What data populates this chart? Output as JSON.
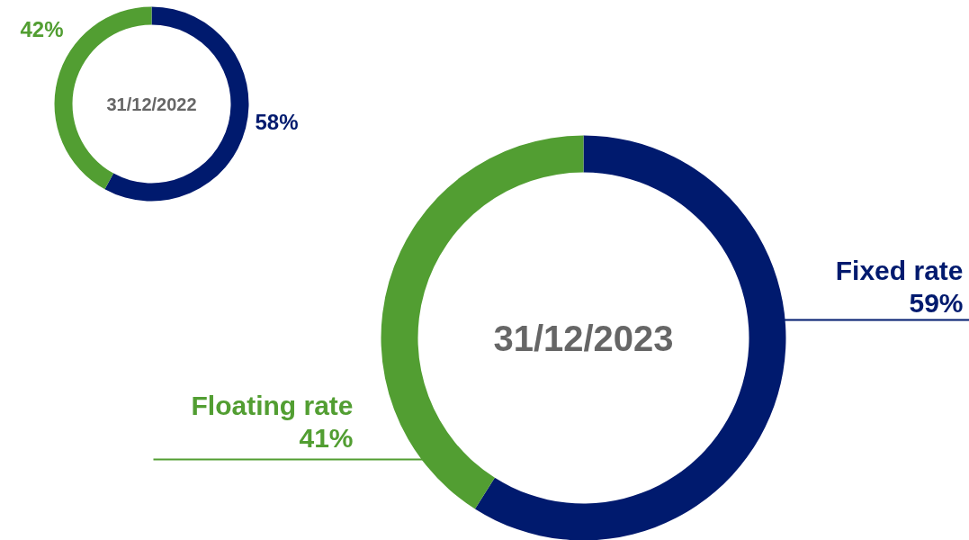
{
  "chart_data": [
    {
      "type": "donut",
      "title": "31/12/2022",
      "categories": [
        null,
        null
      ],
      "values": [
        58,
        42
      ],
      "colors": [
        "#001a6e",
        "#529e32"
      ],
      "value_labels": [
        "58%",
        "42%"
      ]
    },
    {
      "type": "donut",
      "title": "31/12/2023",
      "categories": [
        "Fixed rate",
        "Floating rate"
      ],
      "values": [
        59,
        41
      ],
      "colors": [
        "#001a6e",
        "#529e32"
      ],
      "value_labels": [
        "59%",
        "41%"
      ]
    }
  ]
}
